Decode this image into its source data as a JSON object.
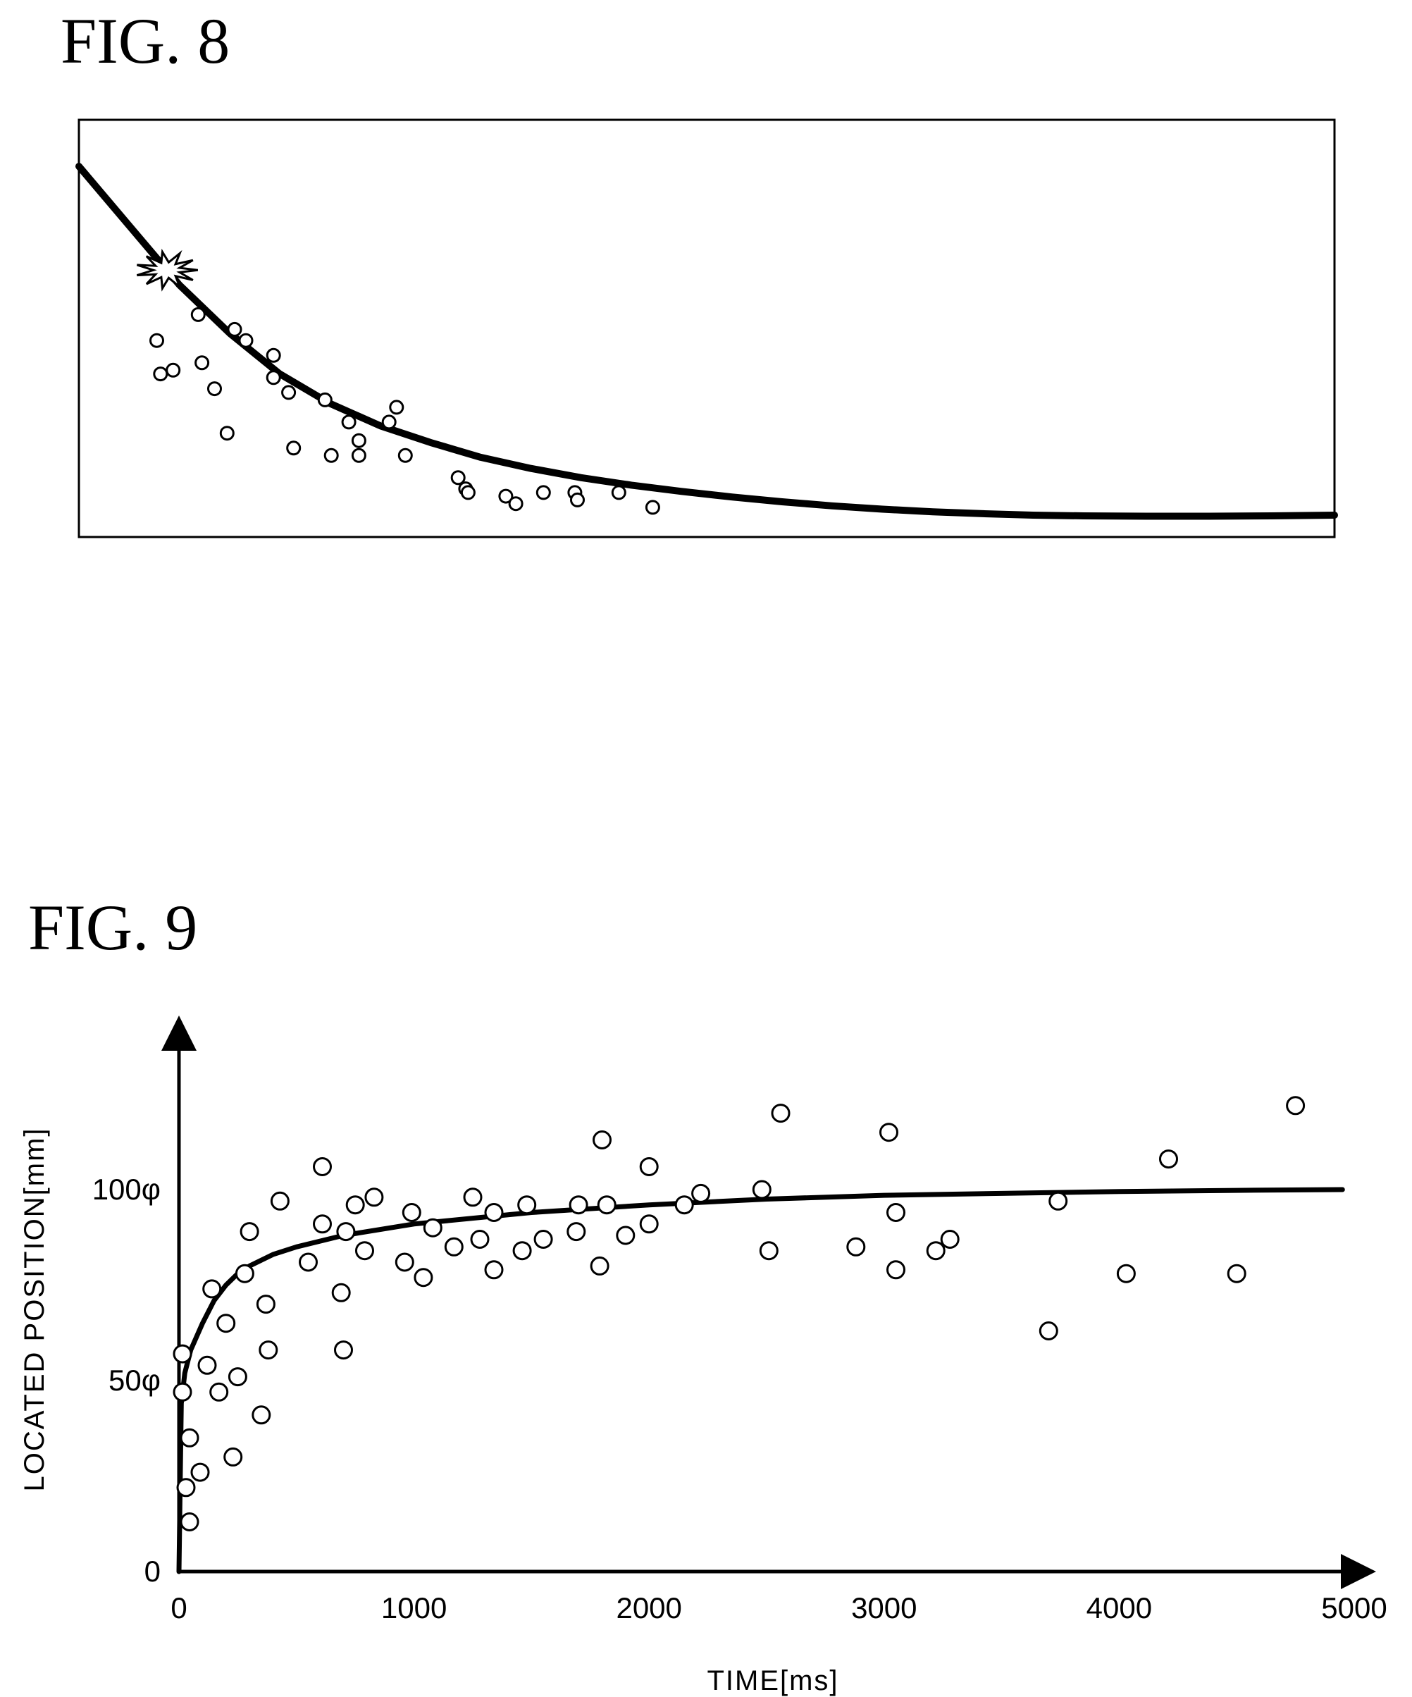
{
  "figures": {
    "fig8_title": "FIG. 8",
    "fig9_title": "FIG. 9"
  },
  "chart_data": [
    {
      "type": "scatter",
      "title": "FIG. 8",
      "xlabel": "",
      "ylabel": "",
      "axes_printed": false,
      "note_marker": "starburst",
      "curve": {
        "x": [
          0,
          40,
          80,
          120,
          160,
          200,
          240,
          280,
          320,
          360,
          400,
          440,
          480,
          520,
          560,
          600,
          640,
          680,
          720,
          760,
          800,
          850,
          900,
          950,
          1000
        ],
        "y": [
          100,
          84,
          68,
          55,
          44,
          36,
          30,
          25.5,
          21.5,
          18.5,
          16,
          14,
          12.3,
          10.8,
          9.5,
          8.4,
          7.5,
          6.8,
          6.3,
          5.9,
          5.7,
          5.6,
          5.6,
          5.7,
          5.9
        ]
      },
      "starburst": {
        "x": 70,
        "y": 72
      },
      "points": {
        "x": [
          62,
          65,
          75,
          95,
          98,
          108,
          118,
          124,
          133,
          155,
          155,
          167,
          171,
          196,
          201,
          215,
          223,
          223,
          247,
          253,
          260,
          302,
          308,
          310,
          340,
          348,
          370,
          395,
          397,
          430,
          457
        ],
        "y": [
          53,
          44,
          45,
          60,
          47,
          40,
          28,
          56,
          53,
          49,
          43,
          39,
          24,
          37,
          22,
          31,
          26,
          22,
          31,
          35,
          22,
          16,
          13,
          12,
          11,
          9,
          12,
          12,
          10,
          12,
          8
        ]
      }
    },
    {
      "type": "scatter",
      "title": "FIG. 9",
      "xlabel": "TIME[ms]",
      "ylabel": "LOCATED POSITION[mm]",
      "xlim": [
        0,
        5000
      ],
      "ylim": [
        0,
        130
      ],
      "x_ticks": [
        "0",
        "1000",
        "2000",
        "3000",
        "4000",
        "5000"
      ],
      "y_ticks": [
        "0",
        "50φ",
        "100φ"
      ],
      "y_tick_values": [
        0,
        50,
        100
      ],
      "curve": {
        "x": [
          0,
          10,
          25,
          50,
          100,
          150,
          200,
          250,
          300,
          400,
          500,
          700,
          1000,
          1500,
          2000,
          2500,
          3000,
          3500,
          4000,
          4500,
          4950
        ],
        "y": [
          0,
          44,
          52,
          58,
          65,
          71,
          75,
          78,
          80,
          83,
          85,
          88,
          91,
          94,
          96,
          97.5,
          98.5,
          99,
          99.5,
          99.8,
          100
        ]
      },
      "points": {
        "x": [
          15,
          15,
          30,
          45,
          45,
          90,
          120,
          140,
          170,
          200,
          230,
          250,
          280,
          300,
          350,
          370,
          380,
          430,
          550,
          610,
          610,
          690,
          700,
          710,
          750,
          790,
          830,
          960,
          990,
          1040,
          1080,
          1170,
          1250,
          1280,
          1340,
          1340,
          1460,
          1480,
          1550,
          1690,
          1700,
          1790,
          1800,
          1820,
          1900,
          2000,
          2000,
          2150,
          2220,
          2480,
          2510,
          2560,
          2880,
          3020,
          3050,
          3050,
          3220,
          3280,
          3700,
          3740,
          4030,
          4210,
          4500,
          4750
        ],
        "y": [
          57,
          47,
          22,
          13,
          35,
          26,
          54,
          74,
          47,
          65,
          30,
          51,
          78,
          89,
          41,
          70,
          58,
          97,
          81,
          106,
          91,
          73,
          58,
          89,
          96,
          84,
          98,
          81,
          94,
          77,
          90,
          85,
          98,
          87,
          79,
          94,
          84,
          96,
          87,
          89,
          96,
          80,
          113,
          96,
          88,
          106,
          91,
          96,
          99,
          100,
          84,
          120,
          85,
          115,
          79,
          94,
          84,
          87,
          63,
          97,
          78,
          108,
          78,
          122
        ]
      }
    }
  ]
}
